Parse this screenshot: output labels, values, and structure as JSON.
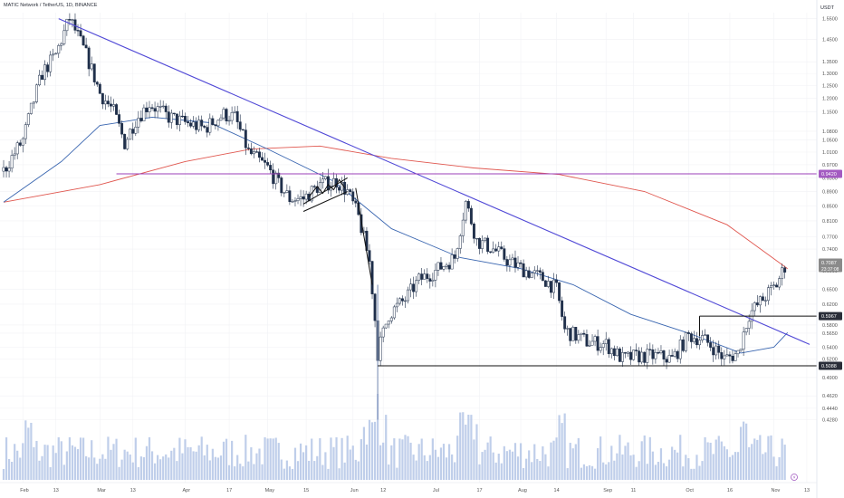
{
  "header": {
    "title": "MATIC Network / TetherUS, 1D, BINANCE"
  },
  "colors": {
    "up": "#1f2f4a",
    "down": "#1f2f4a",
    "downTrendline": "#5048d6",
    "resistance": "#9b3fb8",
    "ma_short": "#3a66b0",
    "ma_long": "#e0574f",
    "volume": "#a9bde3",
    "last_price_badge": "#8a8a8a",
    "level_badge": "#2a2e39",
    "resistance_badge": "#a35bc1"
  },
  "chart_data": {
    "type": "candlestick",
    "quote_currency": "USDT",
    "y_scale": "log",
    "ylim": [
      0.42,
      1.58
    ],
    "xlim": [
      "2023-01-25",
      "2023-11-14"
    ],
    "y_ticks": [
      "1.5500",
      "1.4500",
      "1.3500",
      "1.3000",
      "1.2500",
      "1.2000",
      "1.1500",
      "1.0800",
      "1.0500",
      "1.0100",
      "0.9700",
      "0.9300",
      "0.8900",
      "0.8500",
      "0.8100",
      "0.7700",
      "0.7400",
      "0.6900",
      "0.6500",
      "0.6200",
      "0.5800",
      "0.5650",
      "0.5400",
      "0.5200",
      "0.4900",
      "0.4620",
      "0.4440",
      "0.4280"
    ],
    "x_ticks": [
      {
        "label": "Feb",
        "date": "2023-02-01"
      },
      {
        "label": "13",
        "date": "2023-02-13"
      },
      {
        "label": "Mar",
        "date": "2023-03-01"
      },
      {
        "label": "13",
        "date": "2023-03-13"
      },
      {
        "label": "Apr",
        "date": "2023-04-01"
      },
      {
        "label": "17",
        "date": "2023-04-17"
      },
      {
        "label": "May",
        "date": "2023-05-01"
      },
      {
        "label": "15",
        "date": "2023-05-15"
      },
      {
        "label": "Jun",
        "date": "2023-06-01"
      },
      {
        "label": "12",
        "date": "2023-06-12"
      },
      {
        "label": "Jul",
        "date": "2023-07-01"
      },
      {
        "label": "17",
        "date": "2023-07-17"
      },
      {
        "label": "Aug",
        "date": "2023-08-01"
      },
      {
        "label": "14",
        "date": "2023-08-14"
      },
      {
        "label": "Sep",
        "date": "2023-09-01"
      },
      {
        "label": "11",
        "date": "2023-09-11"
      },
      {
        "label": "Oct",
        "date": "2023-10-01"
      },
      {
        "label": "16",
        "date": "2023-10-16"
      },
      {
        "label": "Nov",
        "date": "2023-11-01"
      },
      {
        "label": "13",
        "date": "2023-11-13"
      }
    ],
    "price_path": [
      [
        "2023-01-25",
        0.95
      ],
      [
        "2023-02-01",
        1.05
      ],
      [
        "2023-02-08",
        1.3
      ],
      [
        "2023-02-13",
        1.38
      ],
      [
        "2023-02-18",
        1.55
      ],
      [
        "2023-02-24",
        1.38
      ],
      [
        "2023-03-01",
        1.22
      ],
      [
        "2023-03-06",
        1.15
      ],
      [
        "2023-03-10",
        1.04
      ],
      [
        "2023-03-14",
        1.12
      ],
      [
        "2023-03-19",
        1.18
      ],
      [
        "2023-03-26",
        1.13
      ],
      [
        "2023-04-01",
        1.11
      ],
      [
        "2023-04-08",
        1.09
      ],
      [
        "2023-04-15",
        1.14
      ],
      [
        "2023-04-19",
        1.13
      ],
      [
        "2023-04-24",
        1.01
      ],
      [
        "2023-05-01",
        0.96
      ],
      [
        "2023-05-05",
        0.91
      ],
      [
        "2023-05-09",
        0.87
      ],
      [
        "2023-05-14",
        0.87
      ],
      [
        "2023-05-20",
        0.91
      ],
      [
        "2023-05-26",
        0.92
      ],
      [
        "2023-05-30",
        0.89
      ],
      [
        "2023-06-03",
        0.82
      ],
      [
        "2023-06-07",
        0.71
      ],
      [
        "2023-06-10",
        0.53
      ],
      [
        "2023-06-14",
        0.6
      ],
      [
        "2023-06-20",
        0.63
      ],
      [
        "2023-06-25",
        0.67
      ],
      [
        "2023-07-01",
        0.69
      ],
      [
        "2023-07-08",
        0.72
      ],
      [
        "2023-07-12",
        0.86
      ],
      [
        "2023-07-16",
        0.76
      ],
      [
        "2023-07-22",
        0.74
      ],
      [
        "2023-07-28",
        0.71
      ],
      [
        "2023-08-03",
        0.69
      ],
      [
        "2023-08-10",
        0.67
      ],
      [
        "2023-08-14",
        0.65
      ],
      [
        "2023-08-17",
        0.57
      ],
      [
        "2023-08-25",
        0.55
      ],
      [
        "2023-09-01",
        0.545
      ],
      [
        "2023-09-07",
        0.52
      ],
      [
        "2023-09-13",
        0.525
      ],
      [
        "2023-09-20",
        0.525
      ],
      [
        "2023-09-25",
        0.52
      ],
      [
        "2023-10-01",
        0.56
      ],
      [
        "2023-10-06",
        0.555
      ],
      [
        "2023-10-10",
        0.54
      ],
      [
        "2023-10-14",
        0.52
      ],
      [
        "2023-10-19",
        0.53
      ],
      [
        "2023-10-23",
        0.6
      ],
      [
        "2023-10-28",
        0.63
      ],
      [
        "2023-11-02",
        0.66
      ],
      [
        "2023-11-05",
        0.7
      ]
    ],
    "series": [
      {
        "type": "sma",
        "values": [
          [
            "2023-01-25",
            0.86
          ],
          [
            "2023-02-15",
            0.98
          ],
          [
            "2023-03-01",
            1.1
          ],
          [
            "2023-03-20",
            1.13
          ],
          [
            "2023-04-10",
            1.11
          ],
          [
            "2023-05-01",
            1.02
          ],
          [
            "2023-05-25",
            0.92
          ],
          [
            "2023-06-15",
            0.79
          ],
          [
            "2023-07-10",
            0.72
          ],
          [
            "2023-08-01",
            0.695
          ],
          [
            "2023-08-20",
            0.66
          ],
          [
            "2023-09-10",
            0.6
          ],
          [
            "2023-10-01",
            0.565
          ],
          [
            "2023-10-20",
            0.53
          ],
          [
            "2023-11-01",
            0.54
          ],
          [
            "2023-11-06",
            0.566
          ]
        ]
      },
      {
        "type": "sma",
        "values": [
          [
            "2023-01-25",
            0.86
          ],
          [
            "2023-03-01",
            0.91
          ],
          [
            "2023-04-01",
            0.98
          ],
          [
            "2023-04-25",
            1.02
          ],
          [
            "2023-05-20",
            1.03
          ],
          [
            "2023-06-15",
            0.99
          ],
          [
            "2023-07-15",
            0.96
          ],
          [
            "2023-08-15",
            0.94
          ],
          [
            "2023-09-15",
            0.89
          ],
          [
            "2023-10-15",
            0.8
          ],
          [
            "2023-11-06",
            0.695
          ]
        ]
      }
    ],
    "drawings": {
      "trendline": [
        [
          "2023-02-14",
          1.55
        ],
        [
          "2023-11-14",
          0.545
        ]
      ],
      "resistance": {
        "price": 0.942,
        "from": "2023-03-07",
        "label": "0.9420"
      },
      "support": {
        "price": 0.5088,
        "from": "2023-06-10",
        "label": "0.5088"
      },
      "breakout": {
        "price": 0.5967,
        "from": "2023-10-05",
        "label": "0.5967"
      },
      "channel": [
        [
          [
            "2023-05-14",
            0.855
          ],
          [
            "2023-05-30",
            0.93
          ]
        ],
        [
          [
            "2023-05-14",
            0.835
          ],
          [
            "2023-05-30",
            0.89
          ]
        ]
      ],
      "squiggle": [
        [
          "2023-05-16",
          0.875
        ],
        [
          "2023-05-19",
          0.905
        ],
        [
          "2023-05-21",
          0.885
        ],
        [
          "2023-05-23",
          0.91
        ],
        [
          "2023-05-25",
          0.895
        ],
        [
          "2023-05-27",
          0.925
        ],
        [
          "2023-05-29",
          0.9
        ]
      ],
      "drop_line": [
        [
          "2023-06-02",
          0.9
        ],
        [
          "2023-06-08",
          0.66
        ]
      ]
    },
    "last_price": {
      "label": "0.7087",
      "sub": "23:37:08"
    }
  }
}
